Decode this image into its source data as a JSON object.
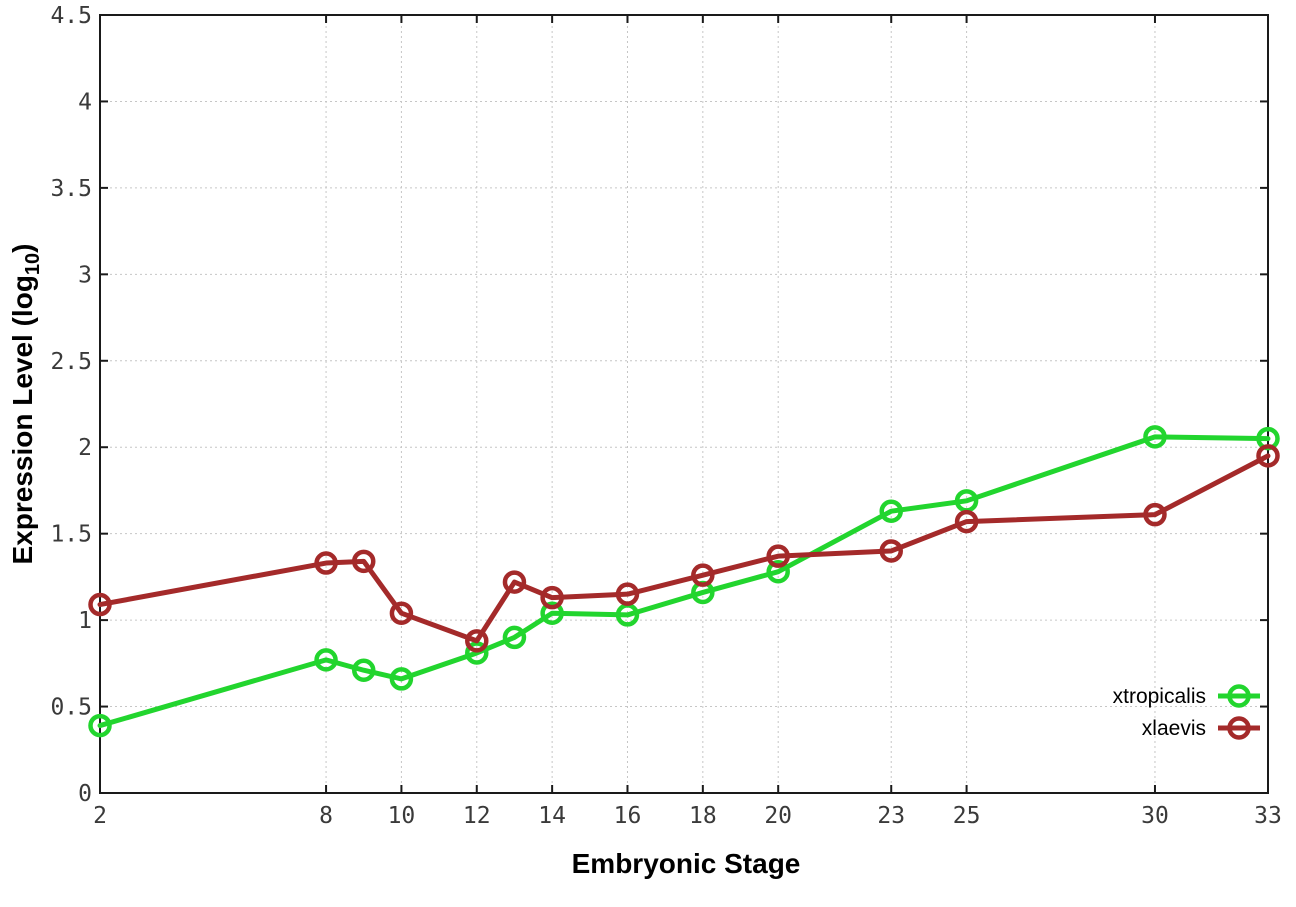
{
  "chart_data": {
    "type": "line",
    "title": "",
    "xlabel": "Embryonic Stage",
    "ylabel": "Expression Level (log10)",
    "xlim": [
      2,
      33
    ],
    "ylim": [
      0,
      4.5
    ],
    "grid": true,
    "legend_position": "bottom-right",
    "x": [
      2,
      8,
      9,
      10,
      12,
      13,
      14,
      16,
      18,
      20,
      23,
      25,
      30,
      33
    ],
    "xticks": [
      2,
      8,
      10,
      12,
      14,
      16,
      18,
      20,
      23,
      25,
      30,
      33
    ],
    "xtick_labels": [
      "2",
      "8",
      "10",
      "12",
      "14",
      "16",
      "18",
      "20",
      "23",
      "25",
      "30",
      "33"
    ],
    "yticks": [
      0,
      0.5,
      1,
      1.5,
      2,
      2.5,
      3,
      3.5,
      4,
      4.5
    ],
    "ytick_labels": [
      "0",
      "0.5",
      "1",
      "1.5",
      "2",
      "2.5",
      "3",
      "3.5",
      "4",
      "4.5"
    ],
    "series": [
      {
        "name": "xtropicalis",
        "color": "#22d52e",
        "marker": "open-circle",
        "values": [
          0.39,
          0.77,
          0.71,
          0.66,
          0.81,
          0.9,
          1.04,
          1.03,
          1.16,
          1.28,
          1.63,
          1.69,
          2.06,
          2.05
        ]
      },
      {
        "name": "xlaevis",
        "color": "#a42a2a",
        "marker": "open-circle",
        "values": [
          1.09,
          1.33,
          1.34,
          1.04,
          0.88,
          1.22,
          1.13,
          1.15,
          1.26,
          1.37,
          1.4,
          1.57,
          1.61,
          1.95
        ]
      }
    ]
  },
  "ylabel_parts": {
    "main": "Expression Level (log",
    "sub": "10",
    "close": ")"
  },
  "colors": {
    "background": "#ffffff",
    "border": "#1a1a1a",
    "grid": "#c6c6c6",
    "tick_text": "#3a3a3a"
  }
}
